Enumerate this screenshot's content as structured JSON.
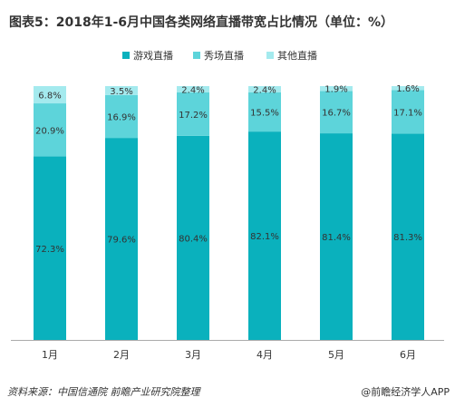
{
  "title": "图表5：2018年1-6月中国各类网络直播带宽占比情况（单位：%）",
  "footer": {
    "source": "资料来源：中国信通院  前瞻产业研究院整理",
    "brand": "@前瞻经济学人APP"
  },
  "colors": {
    "game": "#0ab1bd",
    "show": "#5dd4da",
    "other": "#a4eaee",
    "axis": "#aaaaaa",
    "text": "#333333"
  },
  "chart_data": {
    "type": "bar",
    "stacked": true,
    "categories": [
      "1月",
      "2月",
      "3月",
      "4月",
      "5月",
      "6月"
    ],
    "series": [
      {
        "name": "游戏直播",
        "values": [
          72.3,
          79.6,
          80.4,
          82.1,
          81.4,
          81.3
        ],
        "labels": [
          "72.3%",
          "79.6%",
          "80.4%",
          "82.1%",
          "81.4%",
          "81.3%"
        ]
      },
      {
        "name": "秀场直播",
        "values": [
          20.9,
          16.9,
          17.2,
          15.5,
          16.7,
          17.1
        ],
        "labels": [
          "20.9%",
          "16.9%",
          "17.2%",
          "15.5%",
          "16.7%",
          "17.1%"
        ]
      },
      {
        "name": "其他直播",
        "values": [
          6.8,
          3.5,
          2.4,
          2.4,
          1.9,
          1.6
        ],
        "labels": [
          "6.8%",
          "3.5%",
          "2.4%",
          "2.4%",
          "1.9%",
          "1.6%"
        ]
      }
    ],
    "ylim": [
      0,
      100
    ],
    "legend_position": "top-center"
  }
}
